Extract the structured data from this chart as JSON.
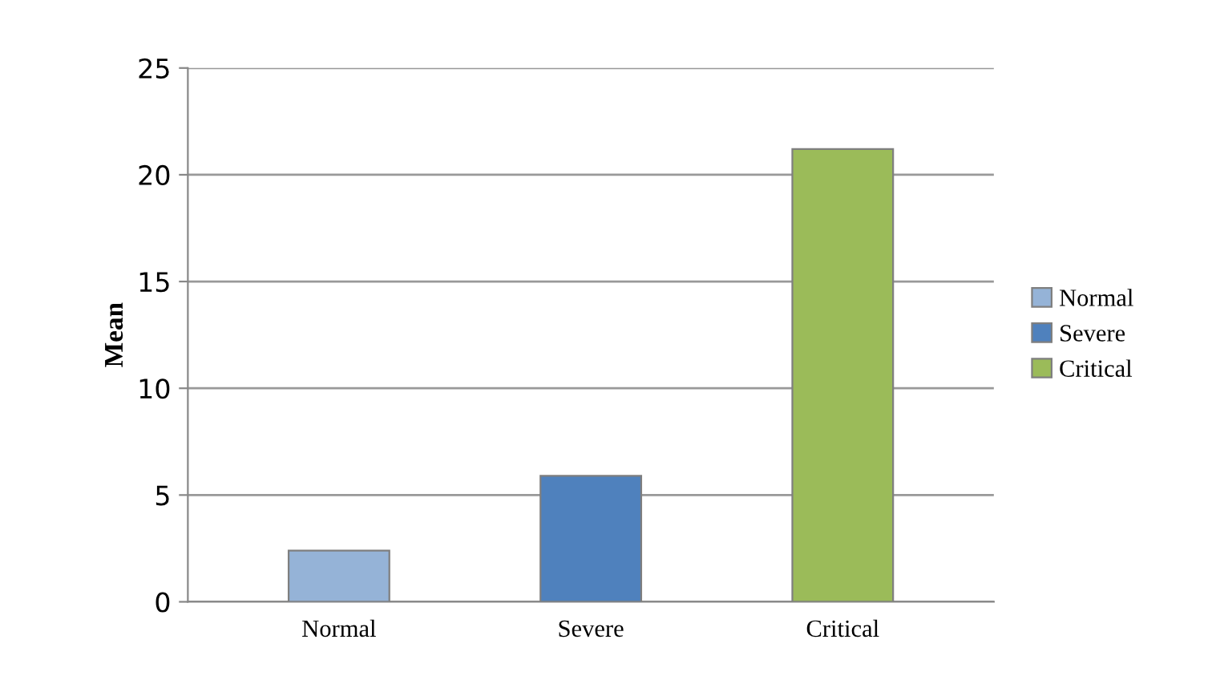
{
  "chart_data": {
    "type": "bar",
    "ylabel": "Mean",
    "categories": [
      "Normal",
      "Severe",
      "Critical"
    ],
    "series": [
      {
        "name": "Normal",
        "color": "#95b3d7",
        "values": [
          2.4,
          null,
          null
        ]
      },
      {
        "name": "Severe",
        "color": "#4f81bd",
        "values": [
          null,
          5.9,
          null
        ]
      },
      {
        "name": "Critical",
        "color": "#9bbb59",
        "values": [
          null,
          null,
          21.2
        ]
      }
    ],
    "ylim": [
      0,
      25
    ],
    "yticks": [
      0,
      5,
      10,
      15,
      20,
      25
    ],
    "grid": "y",
    "legend": "right"
  }
}
